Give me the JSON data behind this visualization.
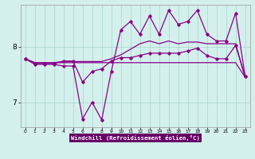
{
  "xlabel": "Windchill (Refroidissement éolien,°C)",
  "bg_color": "#d4f0ec",
  "plot_bg": "#d4f0ec",
  "line_color": "#880088",
  "grid_color": "#b0d8d0",
  "xlabel_bg": "#660066",
  "xlabel_color": "#ffffff",
  "ylim": [
    6.55,
    8.75
  ],
  "xlim": [
    -0.5,
    23.5
  ],
  "yticks": [
    7,
    8
  ],
  "xticks": [
    0,
    1,
    2,
    3,
    4,
    5,
    6,
    7,
    8,
    9,
    10,
    11,
    12,
    13,
    14,
    15,
    16,
    17,
    18,
    19,
    20,
    21,
    22,
    23
  ],
  "line_flat": [
    7.78,
    7.71,
    7.71,
    7.71,
    7.71,
    7.71,
    7.71,
    7.71,
    7.71,
    7.71,
    7.71,
    7.71,
    7.71,
    7.71,
    7.71,
    7.71,
    7.71,
    7.71,
    7.71,
    7.71,
    7.71,
    7.71,
    7.71,
    7.45
  ],
  "line_smooth": [
    7.78,
    7.71,
    7.71,
    7.71,
    7.73,
    7.73,
    7.73,
    7.73,
    7.73,
    7.78,
    7.85,
    7.95,
    8.05,
    8.1,
    8.05,
    8.1,
    8.05,
    8.08,
    8.08,
    8.05,
    8.05,
    8.05,
    8.05,
    7.45
  ],
  "line_mid": [
    7.78,
    7.69,
    7.69,
    7.69,
    7.74,
    7.74,
    7.36,
    7.55,
    7.6,
    7.74,
    7.8,
    7.8,
    7.84,
    7.88,
    7.88,
    7.88,
    7.88,
    7.92,
    7.97,
    7.84,
    7.78,
    7.78,
    8.02,
    7.46
  ],
  "line_volatile": [
    7.78,
    7.68,
    7.68,
    7.68,
    7.65,
    7.65,
    6.7,
    7.0,
    6.68,
    7.55,
    8.3,
    8.45,
    8.22,
    8.55,
    8.22,
    8.65,
    8.4,
    8.45,
    8.65,
    8.22,
    8.1,
    8.1,
    8.6,
    7.46
  ]
}
